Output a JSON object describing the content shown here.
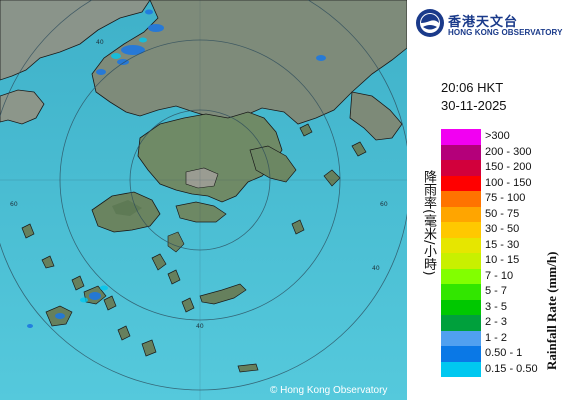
{
  "header": {
    "org_name_cn": "香港天文台",
    "org_name_en": "HONG KONG OBSERVATORY"
  },
  "timestamp": {
    "time": "20:06 HKT",
    "date": "30-11-2025"
  },
  "map": {
    "range_ring_labels": [
      "40",
      "40",
      "60",
      "60",
      "40"
    ],
    "copyright": "© Hong Kong Observatory"
  },
  "legend": {
    "title_cn": "降雨率(毫米/小時)",
    "title_en": "Rainfall Rate (mm/h)",
    "items": [
      {
        "label": ">300",
        "color": "#f200f2"
      },
      {
        "label": "200 - 300",
        "color": "#b4007a"
      },
      {
        "label": "150 - 200",
        "color": "#d2003c"
      },
      {
        "label": "100 - 150",
        "color": "#ff0000"
      },
      {
        "label": "75 - 100",
        "color": "#ff7300"
      },
      {
        "label": "50 - 75",
        "color": "#ffa500"
      },
      {
        "label": "30 - 50",
        "color": "#ffc800"
      },
      {
        "label": "15 - 30",
        "color": "#e6e600"
      },
      {
        "label": "10 - 15",
        "color": "#c8f000"
      },
      {
        "label": "7 - 10",
        "color": "#82ff00"
      },
      {
        "label": "5 - 7",
        "color": "#32e600"
      },
      {
        "label": "3 - 5",
        "color": "#00c800"
      },
      {
        "label": "2 - 3",
        "color": "#00a03c"
      },
      {
        "label": "1 - 2",
        "color": "#50a0f0"
      },
      {
        "label": "0.50 - 1",
        "color": "#0a78e6"
      },
      {
        "label": "0.15 - 0.50",
        "color": "#00c8f0"
      }
    ]
  }
}
